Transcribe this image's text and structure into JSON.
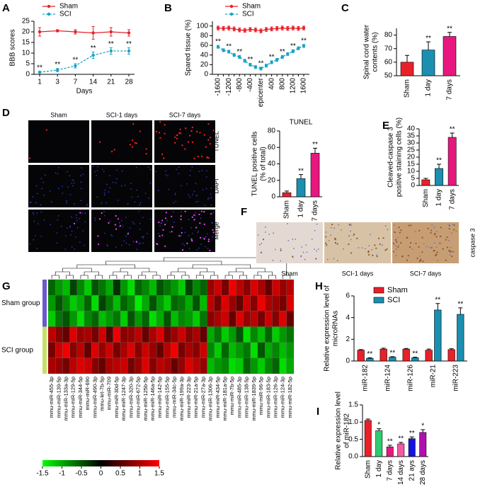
{
  "chart_data": [
    {
      "type": "line",
      "panel": "A",
      "xlabel": "Days",
      "ylabel": [
        "BBB scores"
      ],
      "categories": [
        "1",
        "3",
        "7",
        "14",
        "21",
        "28"
      ],
      "series": [
        {
          "name": "Sham",
          "color": "#e8202a",
          "line_style": "solid",
          "values": [
            20,
            20.5,
            20,
            19.5,
            20,
            19.5
          ],
          "errors": [
            2,
            0.5,
            1,
            3,
            2,
            1.5
          ]
        },
        {
          "name": "SCI",
          "color": "#1aa3c4",
          "line_style": "dashed",
          "values": [
            1,
            2,
            4,
            9,
            11,
            11
          ],
          "errors": [
            0.3,
            0.8,
            1,
            1.5,
            1.5,
            1.5
          ],
          "annotations": [
            "**",
            "**",
            "**",
            "**",
            "**",
            "**"
          ]
        }
      ],
      "ylim": [
        0,
        25
      ],
      "yticks": [
        0,
        5,
        10,
        15,
        20,
        25
      ]
    },
    {
      "type": "line",
      "panel": "B",
      "ylabel": [
        "Spared tissue (%)"
      ],
      "categories": [
        "-1600",
        null,
        "-1200",
        null,
        "-800",
        null,
        "-400",
        null,
        "epicenter",
        null,
        "400",
        null,
        "800",
        null,
        "1200",
        null,
        "1600"
      ],
      "series": [
        {
          "name": "Sham",
          "color": "#e8202a",
          "line_style": "solid",
          "values": [
            96,
            95,
            96,
            94,
            92,
            91,
            93,
            92,
            90,
            93,
            94,
            95,
            96,
            95,
            96,
            95,
            96
          ],
          "errors": [
            4,
            4,
            4,
            4,
            4,
            4,
            4,
            4,
            4,
            4,
            4,
            4,
            4,
            4,
            4,
            4,
            4
          ]
        },
        {
          "name": "SCI",
          "color": "#1aa3c4",
          "line_style": "dashed",
          "values": [
            57,
            50,
            47,
            40,
            36,
            28,
            20,
            15,
            12,
            18,
            25,
            30,
            36,
            42,
            48,
            54,
            59
          ],
          "errors": [
            3,
            3,
            3,
            3,
            3,
            3,
            3,
            3,
            3,
            3,
            3,
            3,
            3,
            3,
            3,
            3,
            3
          ],
          "annotations": [
            "**",
            null,
            "**",
            null,
            "**",
            null,
            "**",
            null,
            "**",
            null,
            "**",
            null,
            "**",
            null,
            "**",
            null,
            "**"
          ]
        }
      ],
      "ylim": [
        0,
        110
      ],
      "yticks": [
        0,
        20,
        40,
        60,
        80,
        100
      ]
    },
    {
      "type": "bar",
      "panel": "C",
      "ylabel": [
        "Spinal cord water",
        "contents (%)"
      ],
      "categories": [
        "Sham",
        "1 day",
        "7 days"
      ],
      "values": [
        60,
        69,
        79
      ],
      "errors": [
        5,
        6,
        3
      ],
      "colors": [
        "#e8202a",
        "#1a8fb0",
        "#e8177f"
      ],
      "annotations": [
        null,
        "**",
        "**"
      ],
      "ylim": [
        50,
        85
      ],
      "yticks": [
        50,
        60,
        70,
        80
      ]
    },
    {
      "type": "bar",
      "title": "TUNEL",
      "ylabel": [
        "TUNEL positive cells",
        "(% of total)"
      ],
      "categories": [
        "Sham",
        "1 day",
        "7 days"
      ],
      "values": [
        5,
        22,
        53
      ],
      "errors": [
        2,
        5,
        6
      ],
      "colors": [
        "#e8202a",
        "#1a8fb0",
        "#e8177f"
      ],
      "annotations": [
        null,
        "**",
        "**"
      ],
      "ylim": [
        0,
        80
      ],
      "yticks": [
        0,
        20,
        40,
        60,
        80
      ]
    },
    {
      "type": "bar",
      "panel": "E",
      "ylabel": [
        "Cleaved-caspase 3",
        "positive staining cells (%)"
      ],
      "categories": [
        "Sham",
        "1 day",
        "7 days"
      ],
      "values": [
        4,
        12,
        34
      ],
      "errors": [
        1,
        3,
        3
      ],
      "colors": [
        "#e8202a",
        "#1a8fb0",
        "#e8177f"
      ],
      "annotations": [
        null,
        "**",
        "**"
      ],
      "ylim": [
        0,
        40
      ],
      "yticks": [
        0,
        5,
        10,
        15,
        20,
        25,
        30,
        35,
        40
      ]
    },
    {
      "type": "heatmap",
      "panel": "G",
      "row_groups": [
        {
          "name": "Sham group",
          "color": "#6a5acd"
        },
        {
          "name": "SCI group",
          "color": "#c8e06a"
        }
      ],
      "columns": [
        "mmu-miR-455-3p",
        "mmu-miR-139-5p",
        "mmu-miR-133a-3p",
        "mmu-miR-129-5p",
        "mmu-miR-344-5p",
        "mmu-miR-690",
        "mmu-miR-490-3p",
        "mmu-let-7b-5p",
        "mmu-miR-709",
        "mmu-miR-30d-5p",
        "mmu-miR-1247-3p",
        "mmu-miR-320-3p",
        "mmu-miR-672-5p",
        "mmu-miR-125b-5p",
        "mmu-miR-146a-5p",
        "mmu-miR-142-5p",
        "mmu-miR-155-5p",
        "mmu-miR-34c-5p",
        "mmu-miR-199a-3p",
        "mmu-miR-223-3p",
        "mmu-miR-21a-5p",
        "mmu-miR-27a-3p",
        "mmu-miR-1306-3p",
        "mmu-miR-434-5p",
        "mmu-miR-181a-5p",
        "mmu-miR-7b-5p",
        "mmu-miR-485-3p",
        "mmu-miR-138-5p",
        "mmu-miR-1839-5p",
        "mmu-miR-96-5p",
        "mmu-miR-183-5p",
        "mmu-miR-126-3p",
        "mmu-miR-124-3p",
        "mmu-miR-182-5p"
      ],
      "column_label_colors": [
        "#000000",
        "#000000",
        "#000000",
        "#000000",
        "#000000",
        "#000000",
        "#000000",
        "#000000",
        "#000000",
        "#000000",
        "#000000",
        "#000000",
        "#000000",
        "#000000",
        "#000000",
        "#000000",
        "#000000",
        "#000000",
        "#000000",
        "#000000",
        "#e8202a",
        "#000000",
        "#000000",
        "#000000",
        "#000000",
        "#000000",
        "#000000",
        "#000000",
        "#000000",
        "#000000",
        "#000000",
        "#000000",
        "#22b822",
        "#22b822"
      ],
      "values": [
        [
          -0.6,
          -0.9,
          -1.1,
          -0.4,
          -0.8,
          -1.2,
          -0.5,
          -0.7,
          -1,
          -0.3,
          -0.9,
          -1.3,
          -0.6,
          -0.8,
          -1.1,
          -0.5,
          -0.7,
          -0.9,
          -1.2,
          -0.4,
          -0.8,
          -0.6,
          0.9,
          1.2,
          0.7,
          1.4,
          1.1,
          0.8,
          1.3,
          1,
          0.6,
          1.2,
          0.9,
          1.1
        ],
        [
          -0.9,
          -0.5,
          -0.8,
          -1.2,
          -1,
          -0.6,
          -1.3,
          -0.4,
          -0.7,
          -1.1,
          -0.6,
          -0.8,
          -1.4,
          -1,
          -0.5,
          -0.9,
          -1.2,
          -0.6,
          -0.7,
          -1,
          -0.5,
          -1.1,
          1.1,
          0.7,
          1.3,
          0.9,
          0.6,
          1.2,
          0.8,
          1.4,
          1,
          0.9,
          0.7,
          1.3
        ],
        [
          -1.2,
          -0.7,
          -0.5,
          -0.9,
          -1.3,
          -0.8,
          -0.6,
          -1.1,
          -0.9,
          -0.7,
          -1.2,
          -0.5,
          -0.9,
          -0.6,
          -1.3,
          -1,
          -0.5,
          -1.1,
          -0.8,
          -0.9,
          -1.2,
          -0.7,
          0.8,
          1,
          1.2,
          0.6,
          1.3,
          0.9,
          1.1,
          0.7,
          1.2,
          0.8,
          1.3,
          0.6
        ],
        [
          1.1,
          0.8,
          0.6,
          1.3,
          0.9,
          1,
          0.7,
          1.2,
          0.5,
          1.4,
          0.8,
          0.9,
          1.1,
          0.6,
          1,
          1.3,
          0.7,
          0.9,
          1.2,
          0.8,
          1,
          0.6,
          -1,
          -0.7,
          -1.2,
          -0.9,
          -0.5,
          -1.3,
          -0.8,
          -1.1,
          -0.6,
          -1.2,
          -0.9,
          -0.7
        ],
        [
          0.7,
          1.2,
          1.4,
          0.8,
          1.1,
          0.6,
          1.3,
          0.9,
          1.2,
          0.7,
          1,
          1.3,
          0.8,
          1.2,
          0.9,
          0.6,
          1.1,
          1.4,
          0.7,
          1,
          0.8,
          1.2,
          -0.8,
          -1.2,
          -0.6,
          -1.1,
          -0.9,
          -0.7,
          -1.3,
          -0.5,
          -1,
          -0.8,
          -1.1,
          -0.9
        ],
        [
          1,
          0.9,
          0.7,
          1.1,
          1.3,
          1.2,
          0.8,
          0.6,
          1,
          1.1,
          1.2,
          0.7,
          0.9,
          1.3,
          0.8,
          1.1,
          1,
          0.6,
          0.9,
          1.3,
          1.1,
          0.9,
          -1.1,
          -0.9,
          -0.8,
          -1.3,
          -1.2,
          -0.6,
          -0.9,
          -1.2,
          -0.8,
          -0.6,
          -1.3,
          -1
        ]
      ],
      "colors": [
        "#00ff00",
        "#000000",
        "#ff0000"
      ],
      "zlim": [
        -1.5,
        1.5
      ],
      "colorbar_ticks": [
        -1.5,
        -1,
        -0.5,
        0,
        0.5,
        1,
        1.5
      ]
    },
    {
      "type": "grouped_bar",
      "panel": "H",
      "ylabel": [
        "Relative expression level of",
        "microRNAs"
      ],
      "categories": [
        "miR-182",
        "miR-124",
        "miR-126",
        "miR-21",
        "miR-223"
      ],
      "series": [
        {
          "name": "Sham",
          "color": "#e8202a",
          "values": [
            1,
            1.1,
            1.1,
            1,
            1.05
          ],
          "errors": [
            0.05,
            0.08,
            0.06,
            0.1,
            0.08
          ]
        },
        {
          "name": "SCI",
          "color": "#1a8fb0",
          "values": [
            0.25,
            0.35,
            0.3,
            4.7,
            4.3
          ],
          "errors": [
            0.05,
            0.05,
            0.05,
            0.6,
            0.6
          ],
          "annotations": [
            "**",
            "**",
            "**",
            "**",
            "**"
          ]
        }
      ],
      "ylim": [
        0,
        6
      ],
      "yticks": [
        0,
        2,
        4,
        6
      ]
    },
    {
      "type": "bar",
      "panel": "I",
      "ylabel": [
        "Relative expression level",
        "of miR-182"
      ],
      "categories": [
        "Sham",
        "1 day",
        "7 days",
        "14 days",
        "21 ays",
        "28 days"
      ],
      "values": [
        1.05,
        0.75,
        0.28,
        0.37,
        0.52,
        0.7
      ],
      "errors": [
        0.04,
        0.06,
        0.05,
        0.04,
        0.05,
        0.08
      ],
      "colors": [
        "#e8202a",
        "#2ecc71",
        "#e8177f",
        "#f25aa8",
        "#1414e0",
        "#b010b0"
      ],
      "annotations": [
        null,
        "*",
        "**",
        "**",
        "**",
        "*"
      ],
      "ylim": [
        0,
        1.5
      ],
      "yticks": [
        {
          "value": 0,
          "label": "0.0"
        },
        0.5,
        {
          "value": 1,
          "label": "1.0"
        },
        1.5
      ]
    }
  ],
  "image_panels": [
    {
      "panel": "D",
      "columns": [
        "Sham",
        "SCI-1 days",
        "SCI-7 days"
      ],
      "rows": [
        "TUNEL",
        "DAPI",
        "Merge"
      ]
    },
    {
      "panel": "F",
      "columns": [
        "Sham",
        "SCI-1 days",
        "SCI-7 days"
      ],
      "rows": [
        "caspase 3"
      ]
    }
  ]
}
